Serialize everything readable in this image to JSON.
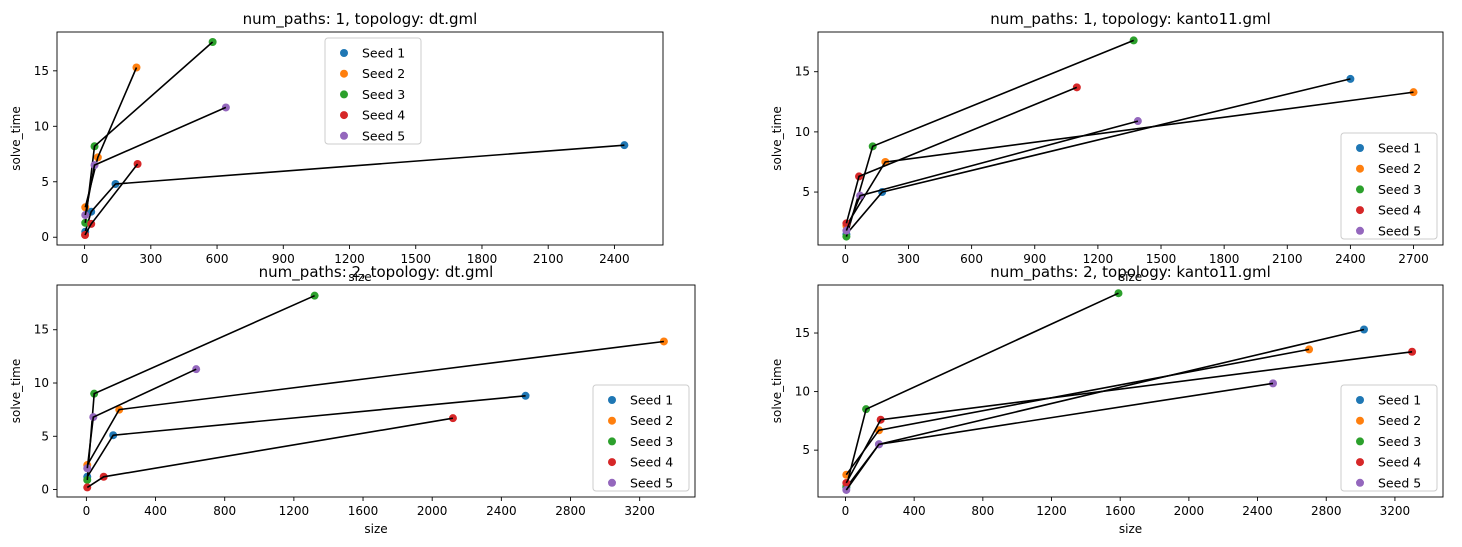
{
  "colors": {
    "seed_1": "#1f77b4",
    "seed_2": "#ff7f0e",
    "seed_3": "#2ca02c",
    "seed_4": "#d62728",
    "seed_5": "#9467bd",
    "connector_line": "#000000"
  },
  "chart_data": [
    {
      "type": "scatter",
      "title": "num_paths: 1, topology: dt.gml",
      "xlabel": "size",
      "ylabel": "solve_time",
      "xlim": [
        -125,
        2620
      ],
      "ylim": [
        -0.7,
        18.5
      ],
      "xticks": [
        0,
        300,
        600,
        900,
        1200,
        1500,
        1800,
        2100,
        2400
      ],
      "yticks": [
        0,
        5,
        10,
        15
      ],
      "grid": false,
      "legend_position": "top-center",
      "series": [
        {
          "name": "Seed 1",
          "x": [
            3,
            30,
            140,
            2445
          ],
          "y": [
            0.5,
            2.3,
            4.8,
            8.3
          ]
        },
        {
          "name": "Seed 2",
          "x": [
            3,
            60,
            235
          ],
          "y": [
            2.7,
            7.2,
            15.3
          ]
        },
        {
          "name": "Seed 3",
          "x": [
            3,
            45,
            580
          ],
          "y": [
            1.3,
            8.2,
            17.6
          ]
        },
        {
          "name": "Seed 4",
          "x": [
            2,
            30,
            240
          ],
          "y": [
            0.2,
            1.2,
            6.6
          ]
        },
        {
          "name": "Seed 5",
          "x": [
            3,
            45,
            640
          ],
          "y": [
            2.0,
            6.5,
            11.7
          ]
        }
      ]
    },
    {
      "type": "scatter",
      "title": "num_paths: 1, topology: kanto11.gml",
      "xlabel": "size",
      "ylabel": "solve_time",
      "xlim": [
        -130,
        2840
      ],
      "ylim": [
        0.6,
        18.3
      ],
      "xticks": [
        0,
        300,
        600,
        900,
        1200,
        1500,
        1800,
        2100,
        2400,
        2700
      ],
      "yticks": [
        5,
        10,
        15
      ],
      "grid": false,
      "legend_position": "lower-right",
      "series": [
        {
          "name": "Seed 1",
          "x": [
            5,
            175,
            2400
          ],
          "y": [
            1.5,
            5.0,
            14.4
          ]
        },
        {
          "name": "Seed 2",
          "x": [
            5,
            190,
            2700
          ],
          "y": [
            2.2,
            7.5,
            13.3
          ]
        },
        {
          "name": "Seed 3",
          "x": [
            5,
            130,
            1370
          ],
          "y": [
            1.3,
            8.8,
            17.6
          ]
        },
        {
          "name": "Seed 4",
          "x": [
            5,
            65,
            1100
          ],
          "y": [
            2.4,
            6.3,
            13.7
          ]
        },
        {
          "name": "Seed 5",
          "x": [
            5,
            70,
            1390
          ],
          "y": [
            1.8,
            4.7,
            10.9
          ]
        }
      ]
    },
    {
      "type": "scatter",
      "title": "num_paths: 2, topology: dt.gml",
      "xlabel": "size",
      "ylabel": "solve_time",
      "xlim": [
        -170,
        3520
      ],
      "ylim": [
        -0.7,
        19.2
      ],
      "xticks": [
        0,
        400,
        800,
        1200,
        1600,
        2000,
        2400,
        2800,
        3200
      ],
      "yticks": [
        0,
        5,
        10,
        15
      ],
      "grid": false,
      "legend_position": "lower-right",
      "series": [
        {
          "name": "Seed 1",
          "x": [
            5,
            155,
            2540
          ],
          "y": [
            1.2,
            5.1,
            8.8
          ]
        },
        {
          "name": "Seed 2",
          "x": [
            5,
            190,
            3340
          ],
          "y": [
            2.3,
            7.5,
            13.9
          ]
        },
        {
          "name": "Seed 3",
          "x": [
            5,
            45,
            1320
          ],
          "y": [
            0.9,
            9.0,
            18.2
          ]
        },
        {
          "name": "Seed 4",
          "x": [
            5,
            100,
            2120
          ],
          "y": [
            0.2,
            1.2,
            6.7
          ]
        },
        {
          "name": "Seed 5",
          "x": [
            5,
            40,
            635
          ],
          "y": [
            2.0,
            6.8,
            11.3
          ]
        }
      ]
    },
    {
      "type": "scatter",
      "title": "num_paths: 2, topology: kanto11.gml",
      "xlabel": "size",
      "ylabel": "solve_time",
      "xlim": [
        -160,
        3480
      ],
      "ylim": [
        1.0,
        19.1
      ],
      "xticks": [
        0,
        400,
        800,
        1200,
        1600,
        2000,
        2400,
        2800,
        3200
      ],
      "yticks": [
        5,
        10,
        15
      ],
      "grid": false,
      "legend_position": "lower-right",
      "series": [
        {
          "name": "Seed 1",
          "x": [
            5,
            195,
            3020
          ],
          "y": [
            1.8,
            5.5,
            15.3
          ]
        },
        {
          "name": "Seed 2",
          "x": [
            5,
            195,
            2700
          ],
          "y": [
            2.9,
            6.7,
            13.6
          ]
        },
        {
          "name": "Seed 3",
          "x": [
            5,
            120,
            1590
          ],
          "y": [
            1.9,
            8.5,
            18.4
          ]
        },
        {
          "name": "Seed 4",
          "x": [
            5,
            205,
            3300
          ],
          "y": [
            2.2,
            7.6,
            13.4
          ]
        },
        {
          "name": "Seed 5",
          "x": [
            5,
            195,
            2490
          ],
          "y": [
            1.6,
            5.5,
            10.7
          ]
        }
      ]
    }
  ]
}
